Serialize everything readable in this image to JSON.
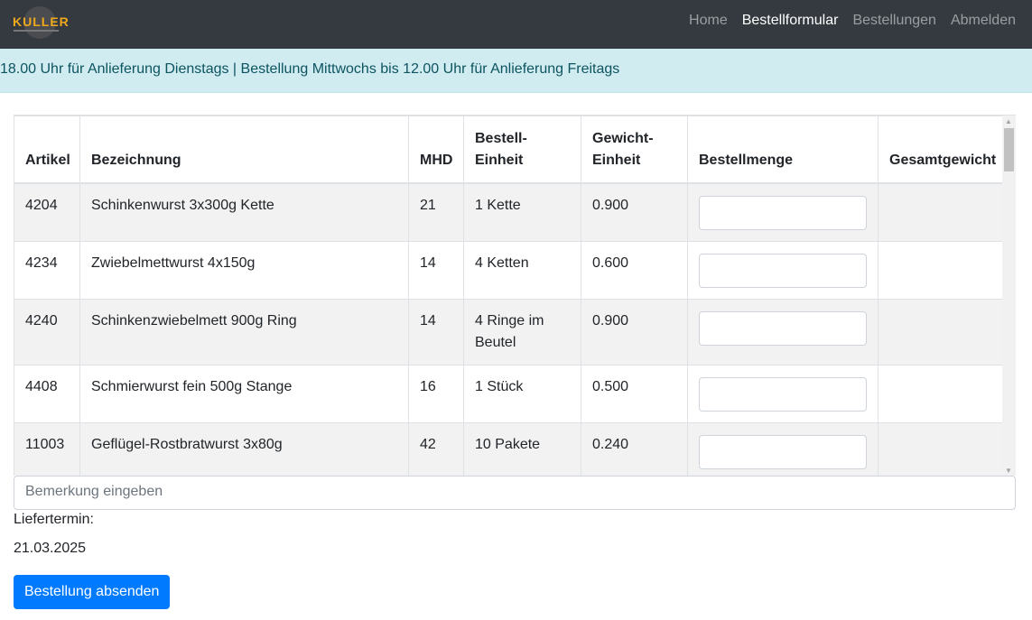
{
  "nav": {
    "logo": "KULLER",
    "links": [
      {
        "label": "Home"
      },
      {
        "label": "Bestellformular",
        "active": true
      },
      {
        "label": "Bestellungen"
      },
      {
        "label": "Abmelden"
      }
    ]
  },
  "alert": "18.00 Uhr für Anlieferung Dienstags | Bestellung Mittwochs bis 12.00 Uhr für Anlieferung Freitags",
  "table": {
    "headers": [
      "Artikel",
      "Bezeichnung",
      "MHD",
      "Bestell-Einheit",
      "Gewicht-Einheit",
      "Bestellmenge",
      "Gesamtgewicht"
    ],
    "rows": [
      {
        "artikel": "4204",
        "bezeichnung": "Schinkenwurst 3x300g Kette",
        "mhd": "21",
        "einheit": "1 Kette",
        "gewicht": "0.900"
      },
      {
        "artikel": "4234",
        "bezeichnung": "Zwiebelmettwurst 4x150g",
        "mhd": "14",
        "einheit": "4 Ketten",
        "gewicht": "0.600"
      },
      {
        "artikel": "4240",
        "bezeichnung": "Schinkenzwiebelmett 900g Ring",
        "mhd": "14",
        "einheit": "4 Ringe im Beutel",
        "gewicht": "0.900"
      },
      {
        "artikel": "4408",
        "bezeichnung": "Schmierwurst fein 500g Stange",
        "mhd": "16",
        "einheit": "1 Stück",
        "gewicht": "0.500"
      },
      {
        "artikel": "11003",
        "bezeichnung": "Geflügel-Rostbratwurst 3x80g",
        "mhd": "42",
        "einheit": "10 Pakete",
        "gewicht": "0.240"
      }
    ]
  },
  "remark_placeholder": "Bemerkung eingeben",
  "liefertermin_label": "Liefertermin:",
  "liefertermin": "21.03.2025",
  "submit": "Bestellung absenden"
}
